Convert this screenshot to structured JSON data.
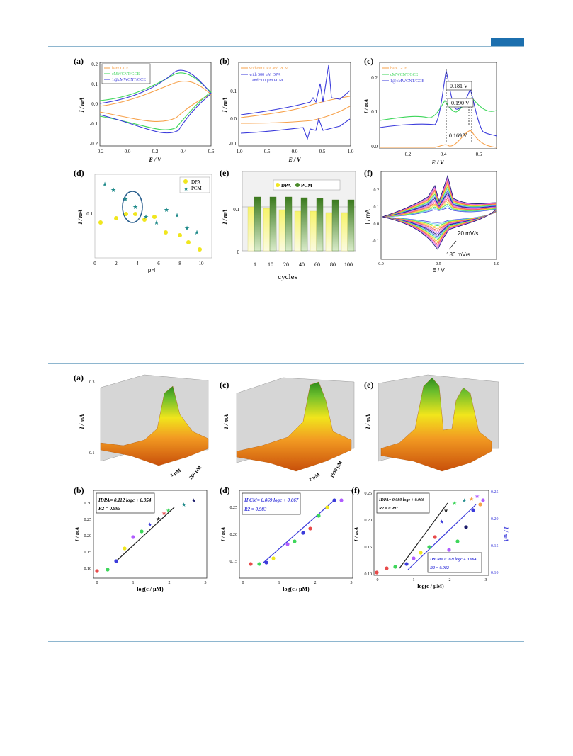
{
  "colors": {
    "rule": "#8eb6cf",
    "tab": "#1c6fae",
    "orange": "#f7a14a",
    "green": "#3dd65a",
    "blue": "#3b3bdb",
    "purple": "#b05cff",
    "teal": "#1f8a8a",
    "yellow": "#f0e61e"
  },
  "figure1": {
    "a": {
      "label": "(a)",
      "xlabel": "E / V",
      "ylabel": "I / mA",
      "xticks": [
        "-0.2",
        "0.0",
        "0.2",
        "0.4",
        "0.6"
      ],
      "yticks": [
        "0.2",
        "0.1",
        "0.0",
        "-0.1",
        "-0.2"
      ],
      "legend": [
        "bare GCE",
        "cMWCNT/GCE",
        "1@cMWCNT/GCE"
      ]
    },
    "b": {
      "label": "(b)",
      "xlabel": "E / V",
      "ylabel": "I / mA",
      "xticks": [
        "-1.0",
        "-0.5",
        "0.0",
        "0.5",
        "1.0"
      ],
      "yticks": [
        "0.1",
        "0.0",
        "-0.1"
      ],
      "legend": [
        "without DPA and PCM",
        "with 500 μM DPA",
        "and 500 μM PCM"
      ]
    },
    "c": {
      "label": "(c)",
      "xlabel": "E / V",
      "ylabel": "I / mA",
      "xticks": [
        "0.2",
        "0.4",
        "0.6"
      ],
      "yticks": [
        "0.2",
        "0.1",
        "0.0"
      ],
      "legend": [
        "bare GCE",
        "cMWCNT/GCE",
        "1@cMWCNT/GCE"
      ],
      "annotations": [
        "0.181 V",
        "0.190 V",
        "0.169 V"
      ]
    },
    "d": {
      "label": "(d)",
      "xlabel": "pH",
      "ylabel": "I / mA",
      "xticks": [
        "0",
        "2",
        "4",
        "6",
        "8",
        "10"
      ],
      "yticks": [
        "0.1"
      ],
      "legend": [
        "DPA",
        "PCM"
      ]
    },
    "e": {
      "label": "(e)",
      "xlabel": "cycles",
      "ylabel": "I / mA",
      "xticks": [
        "1",
        "10",
        "20",
        "40",
        "60",
        "80",
        "100"
      ],
      "yticks": [
        "0",
        "0.1"
      ],
      "legend": [
        "DPA",
        "PCM"
      ]
    },
    "f": {
      "label": "(f)",
      "xlabel": "E / V",
      "ylabel": "I / mA",
      "xticks": [
        "0.0",
        "0.5",
        "1.0"
      ],
      "yticks": [
        "0.2",
        "0.1",
        "0.0",
        "-0.1"
      ],
      "annotations": [
        "20 mV/s",
        "180 mV/s"
      ]
    }
  },
  "figure2": {
    "a": {
      "label": "(a)",
      "ylabel": "I / mA",
      "ytop": "0.3",
      "ybot": "0.1",
      "conc_high": "200 μM",
      "conc_low": "1 μM"
    },
    "c": {
      "label": "(c)",
      "ylabel": "I / mA",
      "conc_high": "1000 μM",
      "conc_low": "2 μM"
    },
    "e": {
      "label": "(e)",
      "ylabel": "I / mA"
    },
    "b": {
      "label": "(b)",
      "xlabel": "log(c / μM)",
      "ylabel": "I / mA",
      "xticks": [
        "0",
        "1",
        "2",
        "3"
      ],
      "yticks": [
        "0.30",
        "0.25",
        "0.20",
        "0.15",
        "0.10"
      ],
      "eq": "IDPA= 0.112 logc + 0.054",
      "r2": "R2 = 0.995"
    },
    "d": {
      "label": "(d)",
      "xlabel": "log(c / μM)",
      "ylabel": "I / mA",
      "xticks": [
        "0",
        "1",
        "2",
        "3"
      ],
      "yticks": [
        "0.25",
        "0.20",
        "0.15"
      ],
      "eq": "IPCM= 0.069 logc + 0.067",
      "r2": "R2 = 0.983"
    },
    "f": {
      "label": "(f)",
      "xlabel": "log(c / μM)",
      "ylabel": "I / mA",
      "ylabel2": "I / mA",
      "xticks": [
        "0",
        "1",
        "2",
        "3"
      ],
      "yticks": [
        "0.25",
        "0.20",
        "0.15",
        "0.10"
      ],
      "yticks2": [
        "0.25",
        "0.20",
        "0.15",
        "0.10"
      ],
      "eq1": "IDPA= 0.080 logc + 0.066",
      "r2_1": "R2 = 0.997",
      "eq2": "IPCM= 0.059 logc + 0.064",
      "r2_2": "R2 = 0.982"
    }
  }
}
